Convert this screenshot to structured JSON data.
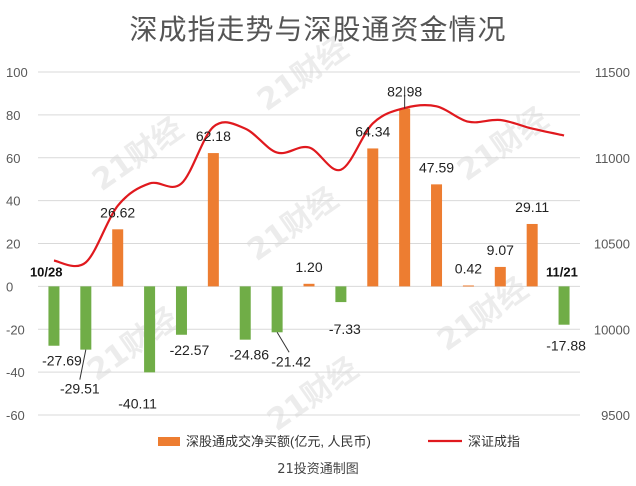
{
  "title": "深成指走势与深股通资金情况",
  "watermark": "21财经",
  "source": "21投资通制图",
  "colors": {
    "positive": "#ED7D31",
    "negative": "#70AD47",
    "line": "#E0191E",
    "grid": "#D9D9D9",
    "axis_text": "#595959"
  },
  "chart_data": {
    "type": "bar",
    "title": "深成指走势与深股通资金情况",
    "categories": [
      "10/28",
      "",
      "",
      "",
      "",
      "",
      "",
      "",
      "",
      "",
      "",
      "",
      "",
      "",
      "",
      "",
      "11/21"
    ],
    "series": [
      {
        "name": "深股通成交净买额(亿元, 人民币)",
        "type": "bar",
        "axis": "left",
        "values": [
          -27.69,
          -29.51,
          26.62,
          -40.11,
          -22.57,
          62.18,
          -24.86,
          -21.42,
          1.2,
          -7.33,
          64.34,
          82.98,
          47.59,
          0.42,
          9.07,
          29.11,
          -17.88
        ],
        "labels": [
          "-27.69",
          "-29.51",
          "26.62",
          "-40.11",
          "-22.57",
          "62.18",
          "-24.86",
          "-21.42",
          "1.20",
          "-7.33",
          "64.34",
          "82.98",
          "47.59",
          "0.42",
          "9.07",
          "29.11",
          "-17.88"
        ]
      },
      {
        "name": "深证成指",
        "type": "line",
        "axis": "right",
        "values": [
          10400,
          10390,
          10720,
          10850,
          10850,
          11180,
          11170,
          11030,
          11060,
          10930,
          11200,
          11290,
          11300,
          11210,
          11220,
          11170,
          11130
        ]
      }
    ],
    "y_left": {
      "min": -60,
      "max": 100,
      "ticks": [
        "-60",
        "-40",
        "-20",
        "0",
        "20",
        "40",
        "60",
        "80",
        "100"
      ]
    },
    "y_right": {
      "min": 9500,
      "max": 11500,
      "ticks": [
        "9500",
        "10000",
        "10500",
        "11000",
        "11500"
      ]
    },
    "date_labels": {
      "first": "10/28",
      "last": "11/21"
    },
    "grid": true,
    "legend_position": "bottom"
  }
}
